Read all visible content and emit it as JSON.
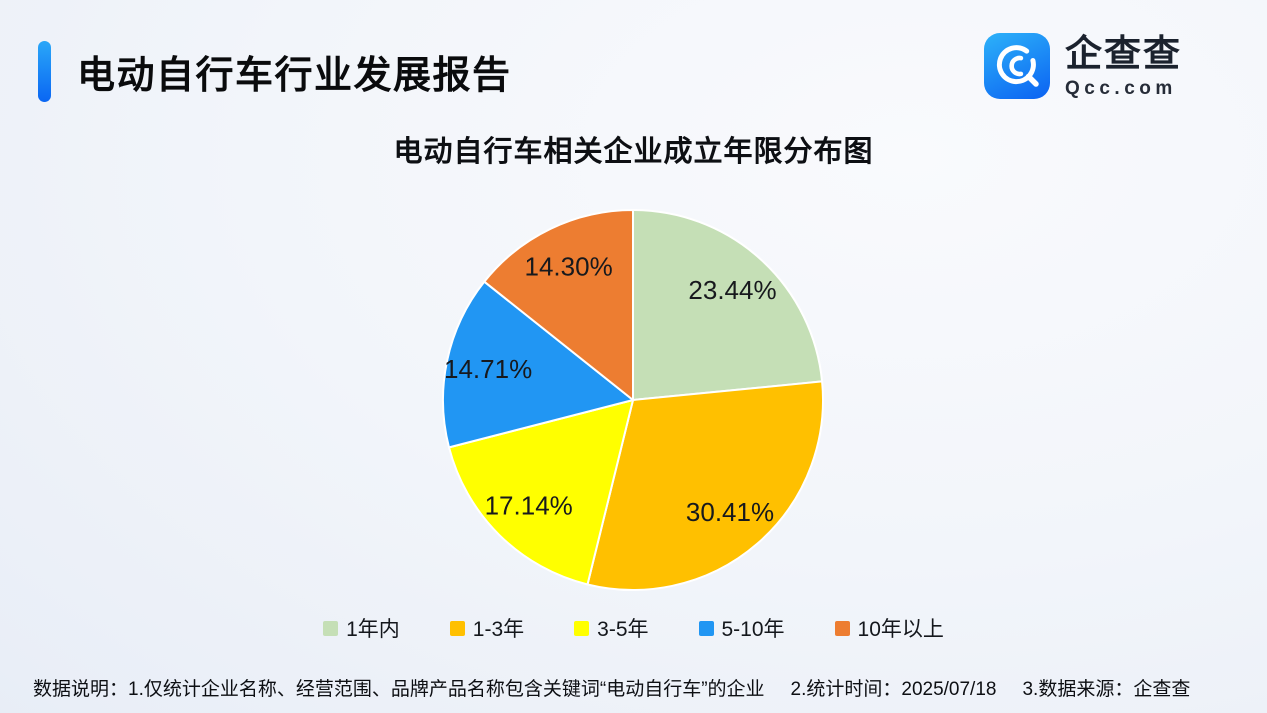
{
  "header": {
    "title": "电动自行车行业发展报告",
    "logo": {
      "brand": "企查查",
      "domain": "Qcc.com"
    }
  },
  "chart_data": {
    "type": "pie",
    "title": "电动自行车相关企业成立年限分布图",
    "unit": "%",
    "start_angle": "12-oclock",
    "direction": "clockwise",
    "legend_position": "bottom",
    "series": [
      {
        "name": "1年内",
        "value": 23.44,
        "label": "23.44%",
        "color": "#c5dfb6"
      },
      {
        "name": "1-3年",
        "value": 30.41,
        "label": "30.41%",
        "color": "#ffc000"
      },
      {
        "name": "3-5年",
        "value": 17.14,
        "label": "17.14%",
        "color": "#ffff00"
      },
      {
        "name": "5-10年",
        "value": 14.71,
        "label": "14.71%",
        "color": "#2196f3"
      },
      {
        "name": "10年以上",
        "value": 14.3,
        "label": "14.30%",
        "color": "#ed7d31"
      }
    ]
  },
  "footer": {
    "label": "数据说明：",
    "items": [
      "1.仅统计企业名称、经营范围、品牌产品名称包含关键词“电动自行车”的企业",
      "2.统计时间：2025/07/18",
      "3.数据来源：企查查"
    ]
  },
  "theme": {
    "accent_blue": "#0d6ef4",
    "background": "#eef2f8",
    "text": "#0e1014",
    "slice_border": "#ffffff"
  }
}
